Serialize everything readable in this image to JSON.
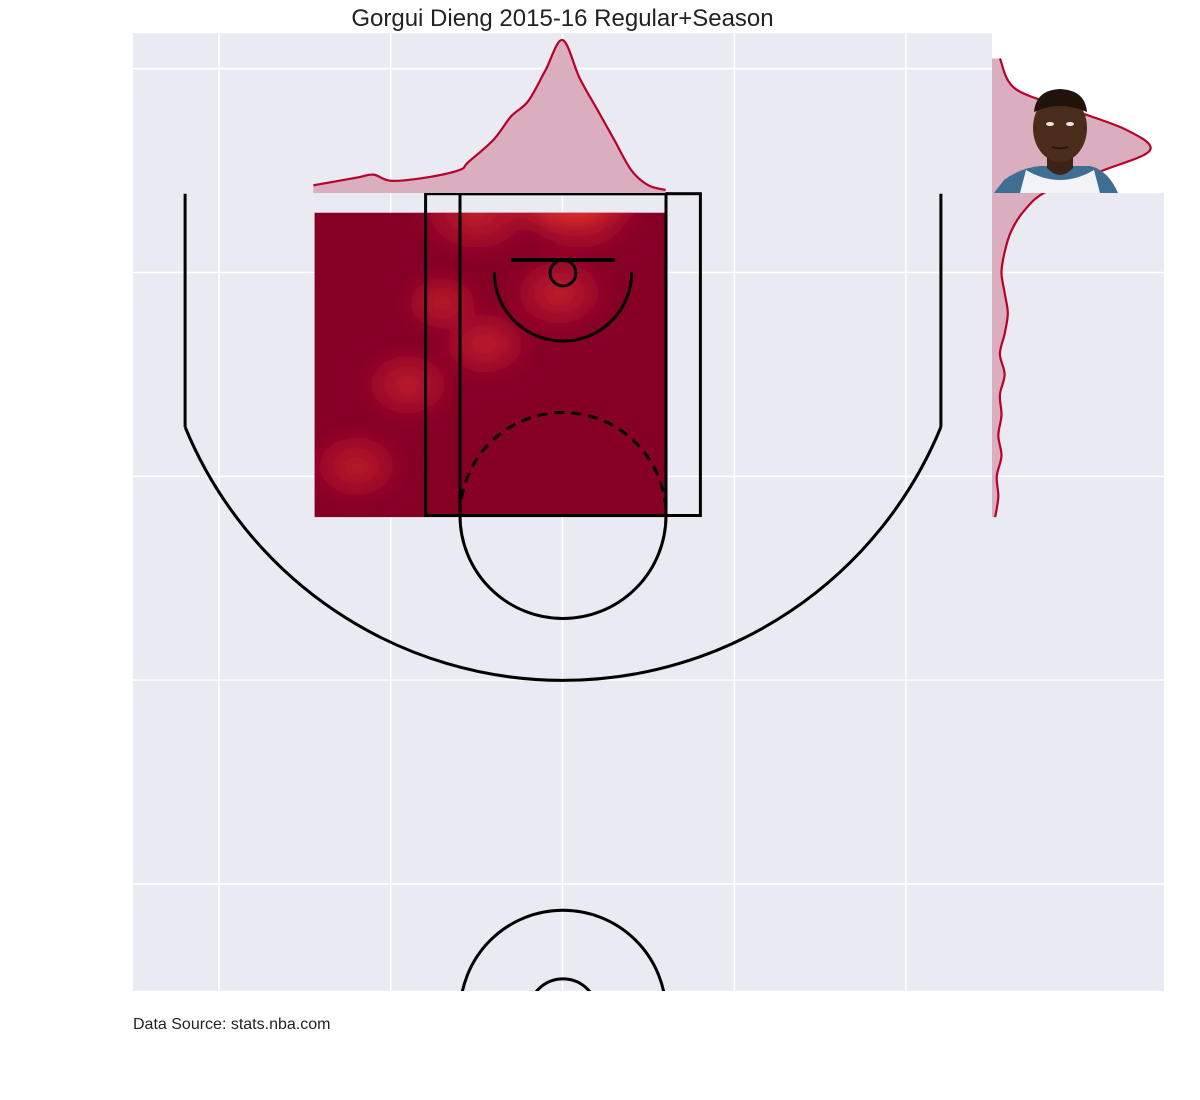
{
  "title": "Gorgui Dieng 2015-16 Regular+Season",
  "source_note": "Data Source: stats.nba.com",
  "colors": {
    "axes_bg": "#e9eaf2",
    "grid": "#ffffff",
    "court_lines": "#000000",
    "heat_low": "#860026",
    "heat_mid": "#e0302a",
    "heat_high": "#fffcc8",
    "marginal_line": "#b8002a",
    "marginal_fill": "#dbaebf"
  },
  "player_photo": {
    "icon": "player-headshot",
    "alt": "Gorgui Dieng"
  },
  "chart_data": [
    {
      "type": "heatmap",
      "title": "Gorgui Dieng 2015-16 Regular+Season",
      "xlim": [
        -250,
        250
      ],
      "ylim": [
        422.5,
        -47.5
      ],
      "grid": true,
      "density_extent": {
        "x": [
          -145,
          60
        ],
        "y": [
          -35,
          190
        ]
      },
      "hotspots": [
        {
          "x": 0,
          "y": 10,
          "weight": 1.0,
          "spread": 30
        },
        {
          "x": -50,
          "y": 40,
          "weight": 0.25,
          "spread": 18
        },
        {
          "x": 10,
          "y": 40,
          "weight": 0.22,
          "spread": 18
        },
        {
          "x": -2,
          "y": 80,
          "weight": 0.22,
          "spread": 15
        },
        {
          "x": -45,
          "y": 105,
          "weight": 0.18,
          "spread": 14
        },
        {
          "x": -70,
          "y": 85,
          "weight": 0.12,
          "spread": 12
        },
        {
          "x": -90,
          "y": 125,
          "weight": 0.15,
          "spread": 14
        },
        {
          "x": -120,
          "y": 165,
          "weight": 0.12,
          "spread": 14
        },
        {
          "x": -70,
          "y": -5,
          "weight": 0.12,
          "spread": 12
        }
      ]
    },
    {
      "type": "area",
      "role": "marginal-x",
      "x": [
        -145,
        -120,
        -110,
        -100,
        -80,
        -60,
        -55,
        -40,
        -30,
        -20,
        -10,
        0,
        10,
        20,
        30,
        40,
        50,
        60
      ],
      "values": [
        0.05,
        0.1,
        0.12,
        0.08,
        0.1,
        0.15,
        0.2,
        0.35,
        0.5,
        0.6,
        0.8,
        1.0,
        0.75,
        0.55,
        0.35,
        0.15,
        0.05,
        0.02
      ]
    },
    {
      "type": "area",
      "role": "marginal-y",
      "y": [
        -35,
        -20,
        -10,
        0,
        10,
        20,
        30,
        40,
        50,
        60,
        70,
        80,
        90,
        100,
        110,
        120,
        130,
        140,
        150,
        160,
        170,
        180,
        190
      ],
      "values": [
        0.05,
        0.15,
        0.5,
        0.85,
        1.0,
        0.7,
        0.35,
        0.2,
        0.12,
        0.08,
        0.06,
        0.08,
        0.1,
        0.08,
        0.05,
        0.08,
        0.05,
        0.06,
        0.04,
        0.06,
        0.03,
        0.04,
        0.02
      ]
    }
  ]
}
